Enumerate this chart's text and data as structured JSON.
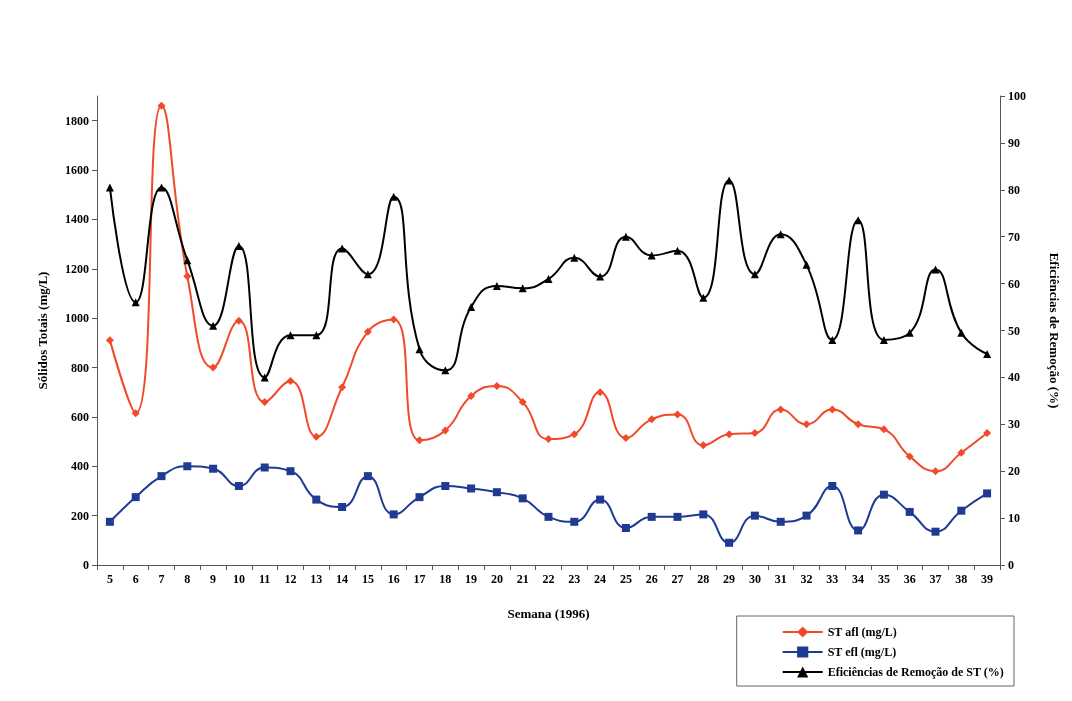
{
  "chart_data": {
    "type": "line",
    "xlabel": "Semana (1996)",
    "ylabel": "Sólidos Totais (mg/L)",
    "y2label": "Eficiências de Remoção (%)",
    "categories": [
      "5",
      "6",
      "7",
      "8",
      "9",
      "10",
      "11",
      "12",
      "13",
      "14",
      "15",
      "16",
      "17",
      "18",
      "19",
      "20",
      "21",
      "22",
      "23",
      "24",
      "25",
      "26",
      "27",
      "28",
      "29",
      "30",
      "31",
      "32",
      "33",
      "34",
      "35",
      "36",
      "37",
      "38",
      "39"
    ],
    "series": [
      {
        "name": "ST afl (mg/L)",
        "color": "#f04a2a",
        "marker": "diamond",
        "values": [
          910,
          615,
          1860,
          1170,
          800,
          990,
          660,
          745,
          520,
          720,
          945,
          995,
          505,
          545,
          685,
          725,
          660,
          510,
          530,
          700,
          515,
          590,
          610,
          485,
          530,
          535,
          630,
          570,
          630,
          570,
          550,
          440,
          380,
          455,
          535
        ]
      },
      {
        "name": "ST efl (mg/L)",
        "color": "#1f3a93",
        "marker": "square",
        "values": [
          175,
          275,
          360,
          400,
          390,
          320,
          395,
          380,
          265,
          235,
          360,
          205,
          275,
          320,
          310,
          295,
          270,
          195,
          175,
          265,
          150,
          195,
          195,
          205,
          90,
          200,
          175,
          200,
          320,
          140,
          285,
          215,
          135,
          220,
          290
        ]
      },
      {
        "name": "Eficiências de Remoção de ST (%)",
        "color": "#000000",
        "marker": "triangle",
        "axis": "y2",
        "values": [
          80.5,
          56,
          80.5,
          65,
          51,
          68,
          40,
          49,
          49,
          67.5,
          62,
          78.5,
          46,
          41.5,
          55,
          59.5,
          59,
          61,
          65.5,
          61.5,
          70,
          66,
          67,
          57,
          82,
          62,
          70.5,
          64,
          48,
          73.5,
          48,
          49.5,
          63,
          49.5,
          45
        ]
      }
    ],
    "ylim": [
      0,
      1900
    ],
    "yticks": [
      0,
      200,
      400,
      600,
      800,
      1000,
      1200,
      1400,
      1600,
      1800
    ],
    "y2lim": [
      0,
      100
    ],
    "y2ticks": [
      0,
      10,
      20,
      30,
      40,
      50,
      60,
      70,
      80,
      90,
      100
    ],
    "grid": false,
    "legend": "bottom right",
    "line_style": "solid"
  }
}
